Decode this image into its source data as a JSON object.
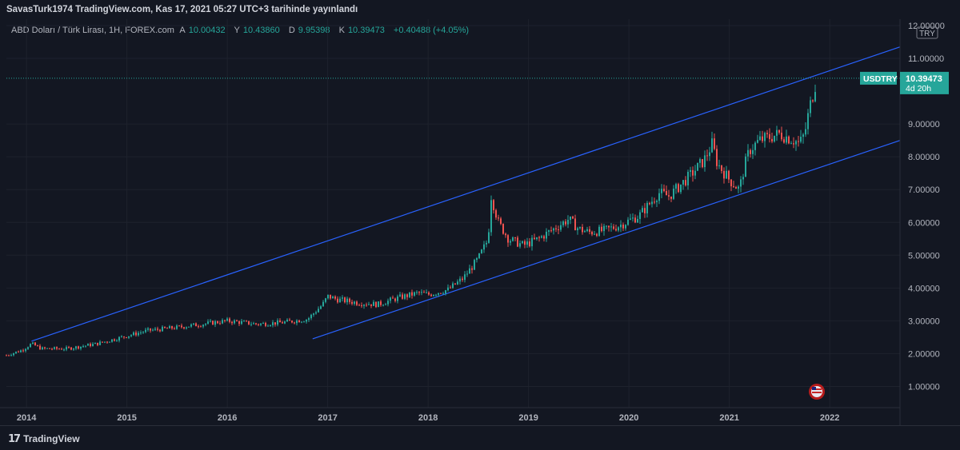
{
  "publication": {
    "title": "SavasTurk1974 TradingView.com, Kas 17, 2021 05:27 UTC+3 tarihinde yayınlandı"
  },
  "legend": {
    "symbol": "ABD Doları / Türk Lirası, 1H, FOREX.com",
    "open_label": "A",
    "open": "10.00432",
    "high_label": "Y",
    "high": "10.43860",
    "low_label": "D",
    "low": "9.95398",
    "close_label": "K",
    "close": "10.39473",
    "change": "+0.40488 (+4.05%)"
  },
  "price_badge": {
    "symbol": "USDTRY",
    "price": "10.39473",
    "countdown": "4d 20h"
  },
  "currency_label": "TRY",
  "branding": {
    "logo_text": "TradingView"
  },
  "colors": {
    "background": "#131722",
    "up": "#26a69a",
    "down": "#ef5350",
    "channel": "#2962ff",
    "badge": "#26a69a"
  },
  "chart_data": {
    "type": "line",
    "title": "",
    "xlabel": "",
    "ylabel": "",
    "x_ticks": [
      "2014",
      "2015",
      "2016",
      "2017",
      "2018",
      "2019",
      "2020",
      "2021",
      "2022"
    ],
    "y_ticks": [
      "1.00000",
      "2.00000",
      "3.00000",
      "4.00000",
      "5.00000",
      "6.00000",
      "7.00000",
      "8.00000",
      "9.00000",
      "11.00000",
      "12.00000"
    ],
    "ylim": [
      0.5,
      12.0
    ],
    "xlim": [
      2013.8,
      2022.7
    ],
    "grid": true,
    "series": [
      {
        "x": [
          2013.8,
          2013.95,
          2014.05,
          2014.15,
          2014.4,
          2014.7,
          2014.95,
          2015.2,
          2015.5,
          2015.75,
          2016.0,
          2016.3,
          2016.55,
          2016.8,
          2016.95,
          2017.0,
          2017.1,
          2017.3,
          2017.5,
          2017.7,
          2017.9,
          2018.0,
          2018.2,
          2018.35,
          2018.5,
          2018.6,
          2018.62,
          2018.7,
          2018.8,
          2018.95,
          2019.1,
          2019.25,
          2019.4,
          2019.5,
          2019.6,
          2019.75,
          2019.9,
          2020.1,
          2020.3,
          2020.4,
          2020.6,
          2020.75,
          2020.83,
          2020.88,
          2021.0,
          2021.1,
          2021.15,
          2021.2,
          2021.3,
          2021.5,
          2021.65,
          2021.7,
          2021.75,
          2021.8,
          2021.87
        ],
        "values": [
          1.95,
          2.1,
          2.3,
          2.15,
          2.15,
          2.3,
          2.5,
          2.7,
          2.8,
          2.9,
          3.0,
          2.9,
          2.95,
          3.05,
          3.5,
          3.75,
          3.65,
          3.55,
          3.5,
          3.7,
          3.85,
          3.8,
          3.95,
          4.3,
          4.9,
          5.5,
          6.9,
          6.0,
          5.5,
          5.3,
          5.5,
          5.8,
          6.1,
          5.8,
          5.7,
          5.75,
          5.9,
          6.2,
          6.9,
          6.8,
          7.4,
          7.9,
          8.4,
          7.8,
          7.3,
          7.0,
          7.7,
          8.2,
          8.5,
          8.7,
          8.5,
          8.4,
          8.7,
          9.5,
          10.39
        ]
      }
    ],
    "channel_lines": [
      {
        "x": [
          2014.05,
          2022.7
        ],
        "values": [
          2.38,
          11.35
        ]
      },
      {
        "x": [
          2016.85,
          2022.7
        ],
        "values": [
          2.45,
          8.5
        ]
      }
    ],
    "last_price": 10.39473
  }
}
